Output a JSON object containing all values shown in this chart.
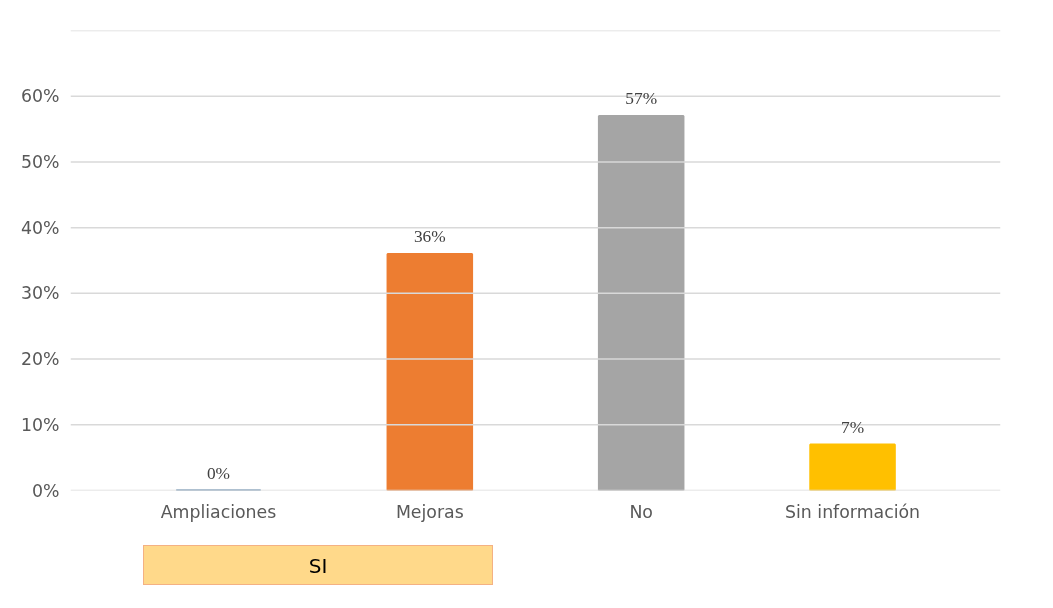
{
  "chart_data": {
    "type": "bar",
    "categories": [
      "Ampliaciones",
      "Mejoras",
      "No",
      "Sin información"
    ],
    "values": [
      0,
      36,
      57,
      7
    ],
    "colors": [
      "#41719c",
      "#ed7d31",
      "#a5a5a5",
      "#ffc000"
    ],
    "value_labels": [
      "0%",
      "36%",
      "57%",
      "7%"
    ],
    "ylim": [
      0,
      70
    ],
    "yticks": [
      {
        "value": 0,
        "label": "0%"
      },
      {
        "value": 10,
        "label": "10%"
      },
      {
        "value": 20,
        "label": "20%"
      },
      {
        "value": 30,
        "label": "30%"
      },
      {
        "value": 40,
        "label": "40%"
      },
      {
        "value": 50,
        "label": "50%"
      },
      {
        "value": 60,
        "label": "60%"
      },
      {
        "value": 70,
        "label": null
      }
    ],
    "grid": "y",
    "annotations": [
      "SI"
    ]
  }
}
